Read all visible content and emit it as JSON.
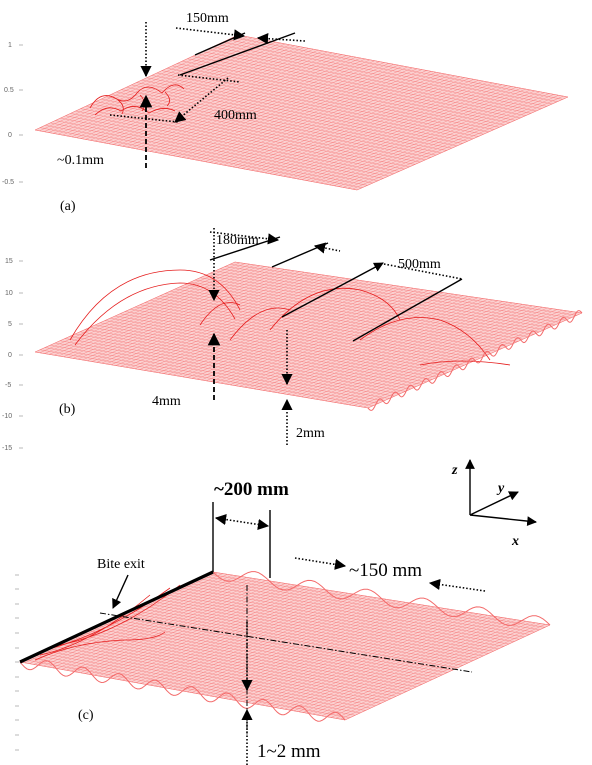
{
  "panels": [
    {
      "id": "a",
      "label": "(a)",
      "yticks": [
        "1",
        "0.5",
        "0",
        "-0.5"
      ],
      "annotations": [
        "150mm",
        "400mm",
        "~0.1mm"
      ]
    },
    {
      "id": "b",
      "label": "(b)",
      "yticks": [
        "15",
        "10",
        "5",
        "0",
        "-5",
        "-10",
        "-15"
      ],
      "annotations": [
        "180mm",
        "500mm",
        "4mm",
        "2mm"
      ]
    },
    {
      "id": "c",
      "label": "(c)",
      "annotations": [
        "~200 mm",
        "~150 mm",
        "1~2 mm",
        "Bite exit"
      ]
    }
  ],
  "axes_legend": {
    "z": "z",
    "y": "y",
    "x": "x"
  },
  "colors": {
    "mesh_line": "#f36b6b",
    "mesh_fill": "#fbd0d0",
    "mesh_dark": "#e51c1c",
    "annotation": "#000000"
  }
}
